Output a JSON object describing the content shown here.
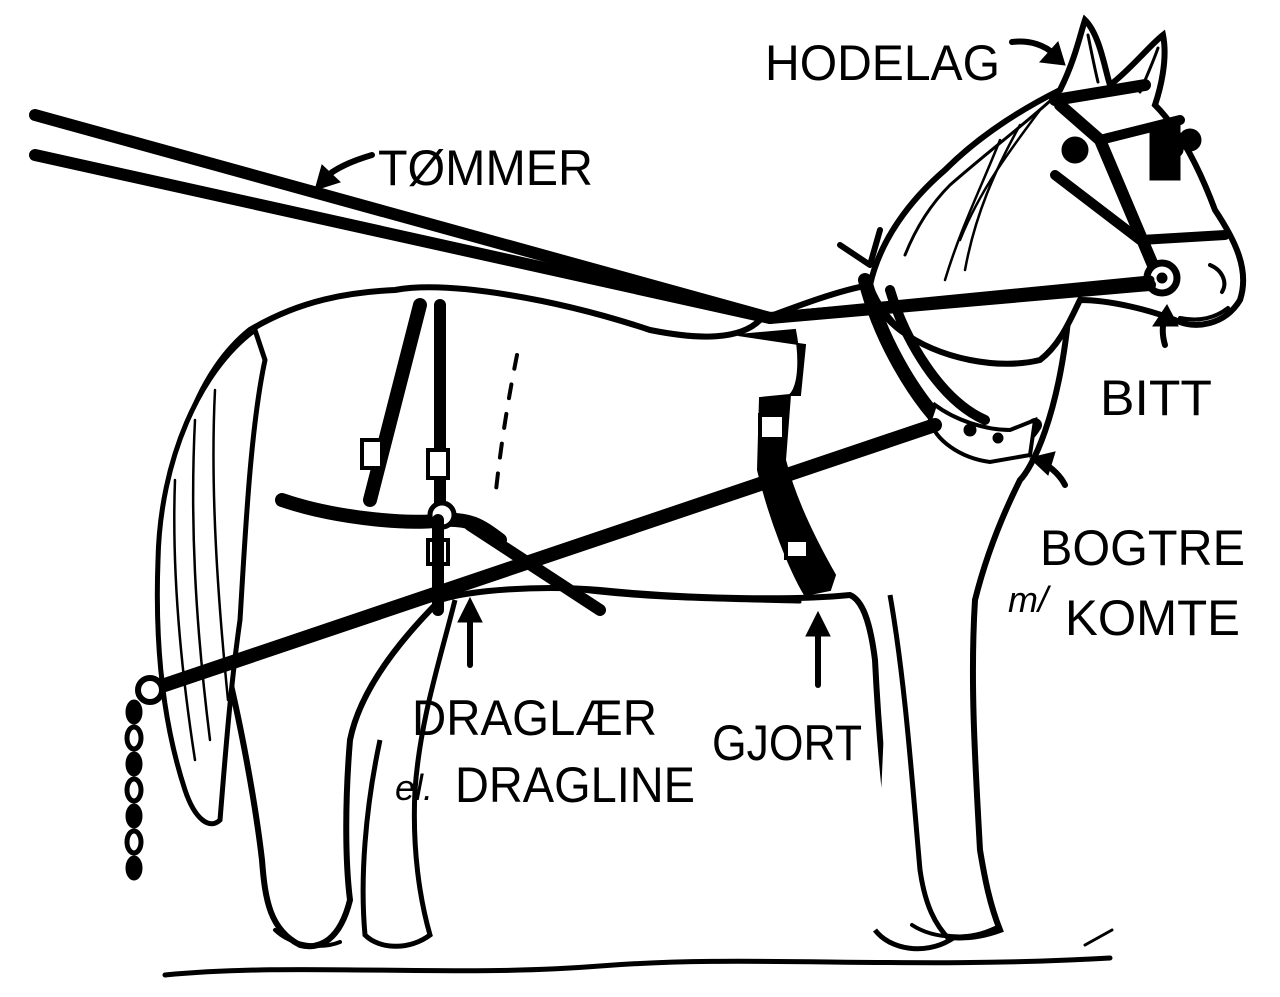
{
  "labels": {
    "hodelag": "HODELAG",
    "tommer": "TØMMER",
    "bitt": "BITT",
    "bogtre_line1": "BOGTRE",
    "bogtre_prefix": "m/",
    "bogtre_line2": "KOMTE",
    "draglaer_line1": "DRAGLÆR",
    "draglaer_prefix": "el.",
    "draglaer_line2": "DRAGLINE",
    "gjort": "GJORT"
  },
  "colors": {
    "ink": "#000000",
    "paper": "#ffffff"
  }
}
